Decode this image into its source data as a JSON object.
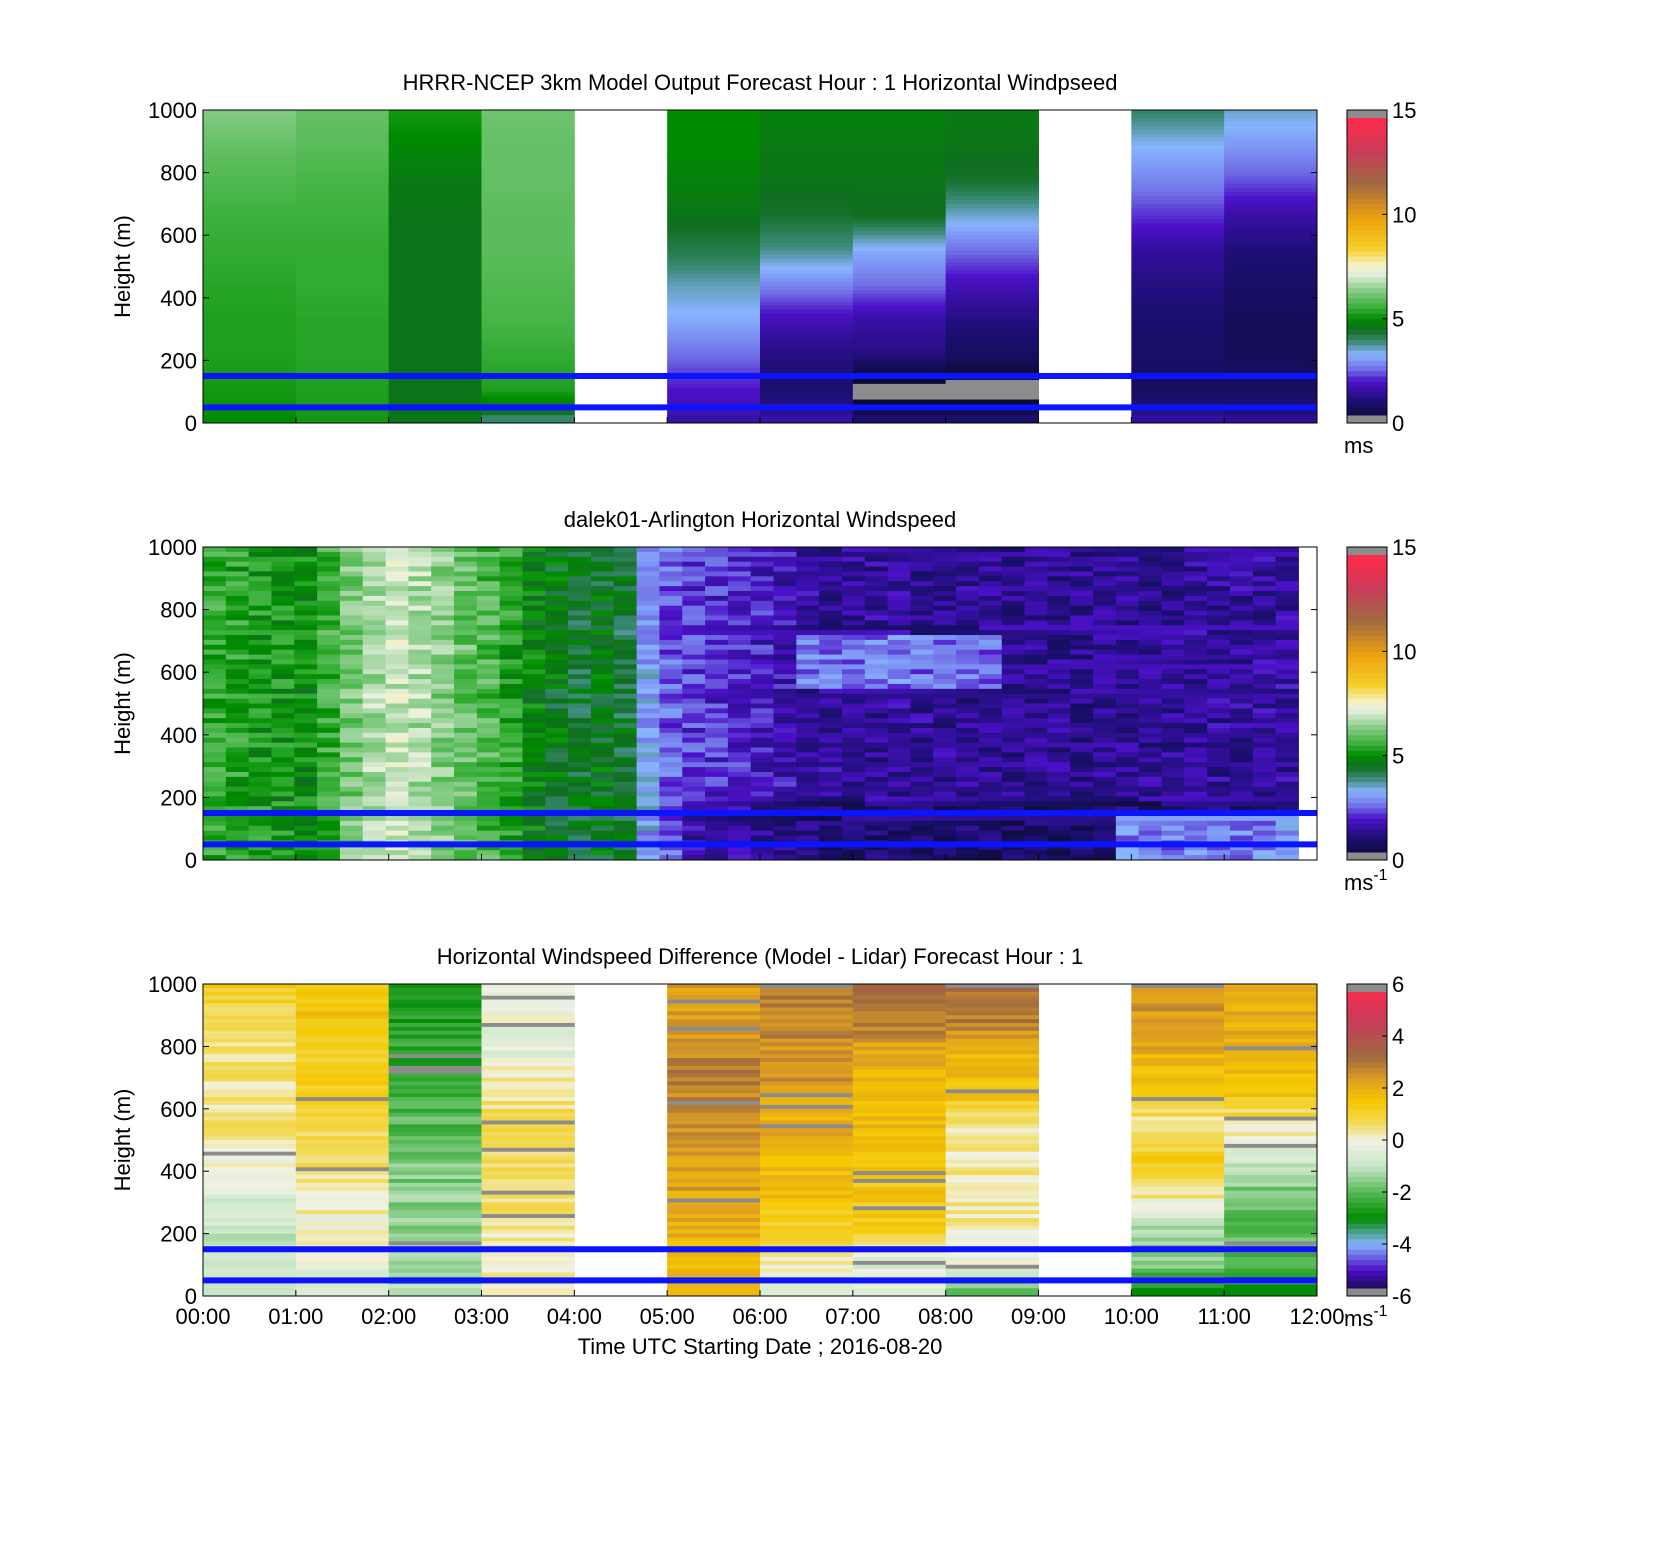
{
  "chart_data": [
    {
      "type": "heatmap",
      "title": "HRRR-NCEP 3km Model Output   Forecast Hour : 1 Horizontal Windpseed",
      "ylabel": "Height (m)",
      "xlim": [
        "00:00",
        "12:00"
      ],
      "ylim": [
        0,
        1000
      ],
      "yticks": [
        "0",
        "200",
        "400",
        "600",
        "800",
        "1000"
      ],
      "x_tick_count": 13,
      "colorbar": {
        "range": [
          0,
          15
        ],
        "ticks": [
          "0",
          "5",
          "10",
          "15"
        ],
        "unit": "ms",
        "unit_sup": ""
      },
      "columns": [
        {
          "hour": 0,
          "top": [
            6.3,
            6.0,
            5.8,
            5.6,
            5.5,
            5.4,
            5.3,
            5.3,
            5.2,
            5.0
          ]
        },
        {
          "hour": 1,
          "top": [
            6.0,
            5.9,
            5.7,
            5.6,
            5.5,
            5.5,
            5.4,
            5.4,
            5.3,
            5.2
          ]
        },
        {
          "hour": 2,
          "top": [
            5.2,
            4.9,
            4.7,
            4.6,
            4.6,
            4.6,
            4.6,
            4.6,
            4.6,
            4.6
          ]
        },
        {
          "hour": 3,
          "top": [
            6.1,
            6.0,
            6.0,
            5.9,
            5.9,
            5.8,
            5.7,
            5.5,
            5.3,
            4.0
          ]
        },
        {
          "hour": 4,
          "top": null
        },
        {
          "hour": 5,
          "top": [
            5.0,
            5.0,
            4.8,
            4.6,
            4.2,
            3.6,
            3.2,
            2.6,
            2.0,
            1.6
          ]
        },
        {
          "hour": 6,
          "top": [
            4.8,
            4.7,
            4.6,
            4.4,
            3.8,
            2.8,
            1.8,
            1.2,
            1.0,
            1.6
          ]
        },
        {
          "hour": 7,
          "top": [
            4.8,
            4.7,
            4.6,
            4.5,
            3.2,
            2.6,
            1.6,
            1.2,
            -0.3,
            1.0
          ]
        },
        {
          "hour": 8,
          "top": [
            4.7,
            4.6,
            4.4,
            3.5,
            2.6,
            1.8,
            1.2,
            0.8,
            -0.3,
            0.9
          ]
        },
        {
          "hour": 9,
          "top": null
        },
        {
          "hour": 10,
          "top": [
            4.0,
            3.3,
            2.8,
            2.2,
            1.5,
            1.2,
            1.0,
            0.9,
            0.8,
            1.5
          ]
        },
        {
          "hour": 11,
          "top": [
            3.5,
            3.0,
            2.4,
            1.6,
            1.1,
            0.9,
            0.7,
            0.7,
            0.8,
            1.4
          ]
        }
      ],
      "reference_lines_m": [
        150,
        50
      ]
    },
    {
      "type": "heatmap",
      "title": "dalek01-Arlington  Horizontal Windspeed",
      "ylabel": "Height (m)",
      "xlim": [
        "00:00",
        "12:00"
      ],
      "ylim": [
        0,
        1000
      ],
      "yticks": [
        "0",
        "200",
        "400",
        "600",
        "800",
        "1000"
      ],
      "x_tick_count": 13,
      "colorbar": {
        "range": [
          0,
          15
        ],
        "ticks": [
          "0",
          "5",
          "10",
          "15"
        ],
        "unit": "ms",
        "unit_sup": "-1"
      },
      "profiles": [
        {
          "hour": 0.0,
          "speed": 5.5
        },
        {
          "hour": 1.0,
          "speed": 5.0
        },
        {
          "hour": 1.6,
          "speed": 6.5
        },
        {
          "hour": 2.0,
          "speed": 7.0
        },
        {
          "hour": 2.5,
          "speed": 6.3
        },
        {
          "hour": 3.0,
          "speed": 5.7
        },
        {
          "hour": 3.5,
          "speed": 4.8
        },
        {
          "hour": 4.0,
          "speed": 4.3
        },
        {
          "hour": 4.35,
          "speed": 4.8
        },
        {
          "hour": 4.55,
          "speed": 3.6
        },
        {
          "hour": 4.8,
          "speed": 2.6
        },
        {
          "hour": 5.2,
          "speed": 2.2
        },
        {
          "hour": 6.0,
          "speed": 1.9
        },
        {
          "hour": 6.5,
          "speed": 1.5
        },
        {
          "hour": 7.5,
          "speed": 1.5
        },
        {
          "hour": 8.5,
          "speed": 1.4
        },
        {
          "hour": 9.5,
          "speed": 1.4
        },
        {
          "hour": 11.8,
          "speed": 1.6
        }
      ],
      "reference_lines_m": [
        150,
        50
      ]
    },
    {
      "type": "heatmap",
      "title": "Horizontal Windspeed Difference (Model - Lidar) Forecast Hour : 1",
      "xlabel": "Time UTC  Starting Date ; 2016-08-20",
      "ylabel": "Height (m)",
      "xlim": [
        "00:00",
        "12:00"
      ],
      "ylim": [
        0,
        1000
      ],
      "xticks": [
        "00:00",
        "01:00",
        "02:00",
        "03:00",
        "04:00",
        "05:00",
        "06:00",
        "07:00",
        "08:00",
        "09:00",
        "10:00",
        "11:00",
        "12:00"
      ],
      "yticks": [
        "0",
        "200",
        "400",
        "600",
        "800",
        "1000"
      ],
      "colorbar": {
        "range": [
          -6,
          6
        ],
        "ticks": [
          "-6",
          "-4",
          "-2",
          "0",
          "2",
          "4",
          "6"
        ],
        "unit": "ms",
        "unit_sup": "-1"
      },
      "columns": [
        {
          "hour": 0,
          "top": [
            1.3,
            0.6,
            0.6,
            0.3,
            0.5,
            0.0,
            -0.5,
            -0.8,
            -1.0,
            -1.0
          ]
        },
        {
          "hour": 1,
          "top": [
            1.6,
            1.4,
            1.3,
            1.2,
            1.0,
            0.6,
            0.2,
            0.0,
            -0.2,
            -0.5
          ]
        },
        {
          "hour": 2,
          "top": [
            -2.7,
            -2.6,
            -2.4,
            -2.2,
            -2.0,
            -1.8,
            -1.5,
            -1.4,
            -1.3,
            -1.2
          ]
        },
        {
          "hour": 3,
          "top": [
            -0.3,
            -0.2,
            -0.4,
            0.4,
            0.7,
            0.8,
            0.6,
            0.2,
            0.0,
            0.2
          ]
        },
        {
          "hour": 4,
          "top": null
        },
        {
          "hour": 5,
          "top": [
            2.2,
            2.5,
            2.8,
            2.8,
            2.6,
            2.4,
            2.2,
            2.0,
            1.8,
            1.8
          ]
        },
        {
          "hour": 6,
          "top": [
            2.8,
            2.8,
            2.5,
            2.3,
            2.0,
            1.8,
            1.6,
            1.2,
            0.2,
            -0.5
          ]
        },
        {
          "hour": 7,
          "top": [
            3.4,
            3.0,
            2.0,
            1.8,
            1.7,
            1.6,
            1.5,
            1.2,
            -0.5,
            -0.5
          ]
        },
        {
          "hour": 8,
          "top": [
            3.0,
            2.8,
            1.8,
            1.6,
            0.4,
            0.3,
            0.3,
            0.2,
            0.0,
            -2.0
          ]
        },
        {
          "hour": 9,
          "top": null
        },
        {
          "hour": 10,
          "top": [
            2.6,
            2.4,
            2.0,
            1.6,
            0.2,
            1.2,
            0.4,
            -1.4,
            -1.6,
            -3.0
          ]
        },
        {
          "hour": 11,
          "top": [
            2.2,
            2.1,
            2.0,
            1.6,
            0.4,
            -1.0,
            -1.6,
            -2.0,
            -2.2,
            -3.0
          ]
        }
      ],
      "reference_lines_m": [
        150,
        50
      ]
    }
  ]
}
